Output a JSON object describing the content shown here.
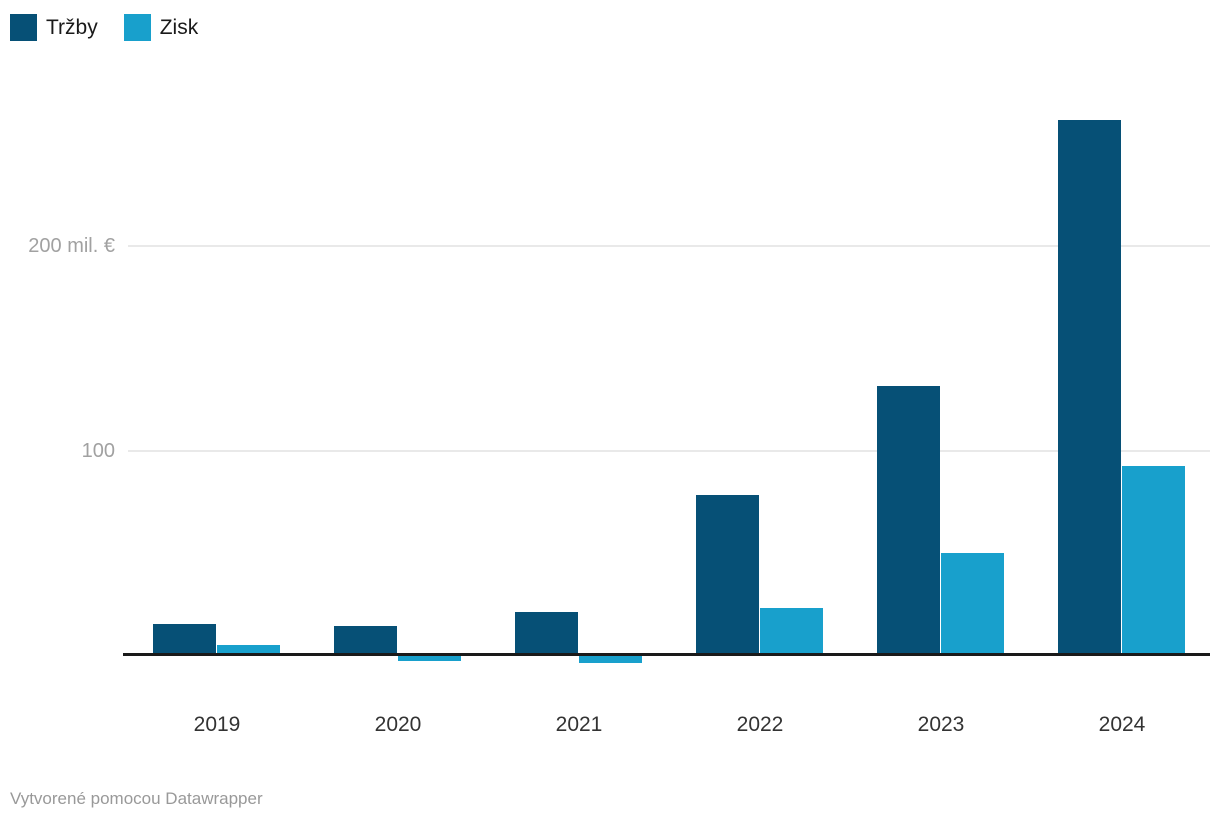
{
  "chart_data": {
    "type": "bar",
    "title": "",
    "categories": [
      "2019",
      "2020",
      "2021",
      "2022",
      "2023",
      "2024"
    ],
    "series": [
      {
        "name": "Tržby",
        "color": "#065076",
        "values": [
          14,
          13,
          20,
          77,
          130,
          260
        ]
      },
      {
        "name": "Zisk",
        "color": "#18a0cc",
        "values": [
          4,
          -2.5,
          -3.5,
          22,
          49,
          91
        ]
      }
    ],
    "unit": "mil. €",
    "y_ticks": [
      {
        "value": 100,
        "label": "100"
      },
      {
        "value": 200,
        "label": "200 mil. €"
      }
    ],
    "ylim": [
      -10,
      275
    ],
    "grid": "horizontal",
    "baseline_value": 0,
    "legend_position": "top-left"
  },
  "footer": {
    "credit": "Vytvorené pomocou Datawrapper"
  },
  "colors": {
    "legend_text": "#1a1a1a",
    "axis_tick_text": "#a1a1a1",
    "category_text": "#333333",
    "gridline": "#e9e9e9",
    "baseline": "#1a1a1a",
    "background": "#ffffff",
    "footer_text": "#999999"
  }
}
